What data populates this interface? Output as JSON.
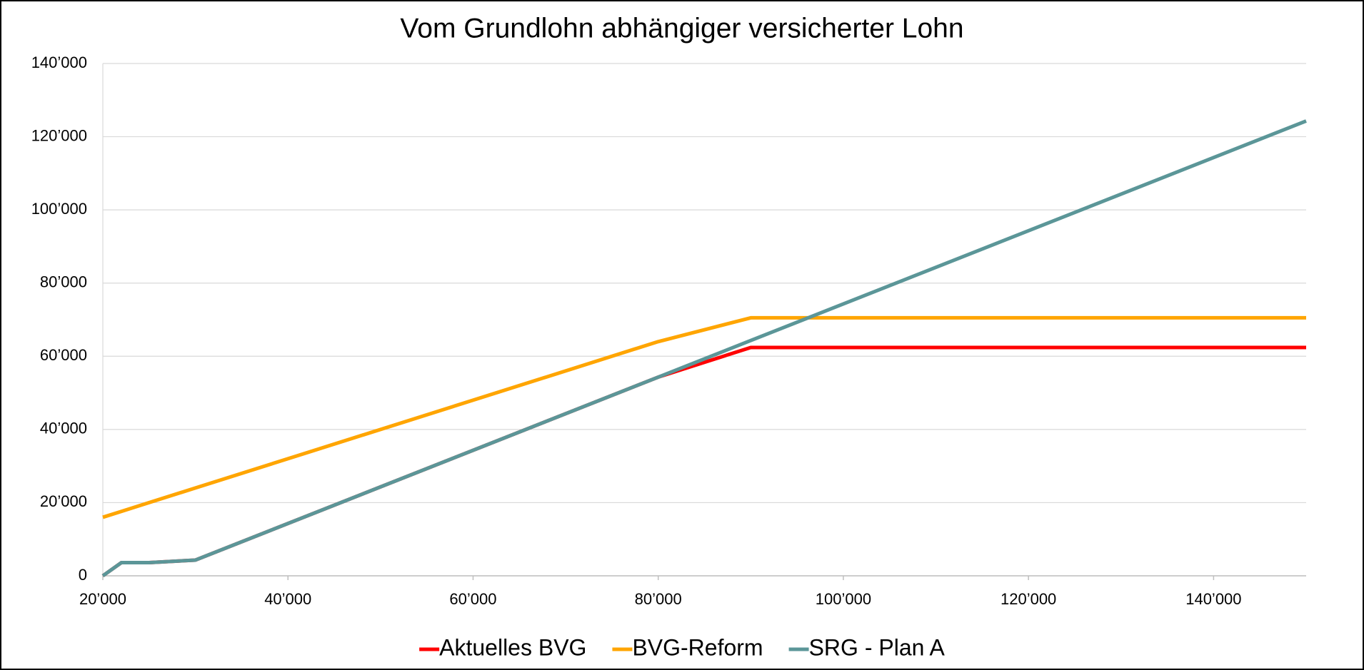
{
  "chart_data": {
    "type": "line",
    "title": "Vom Grundlohn abhängiger versicherter Lohn",
    "x": [
      20000,
      22000,
      25000,
      30000,
      80000,
      90000,
      150000
    ],
    "series": [
      {
        "name": "Aktuelles BVG",
        "color": "#ff0000",
        "values": [
          0,
          3600,
          3600,
          4300,
          54300,
          62400,
          62400
        ]
      },
      {
        "name": "BVG-Reform",
        "color": "#ffa500",
        "values": [
          16000,
          17600,
          20000,
          24000,
          64000,
          70500,
          70500
        ]
      },
      {
        "name": "SRG - Plan A",
        "color": "#5b9698",
        "values": [
          0,
          3600,
          3600,
          4300,
          54300,
          64300,
          124300
        ]
      }
    ],
    "xlim": [
      20000,
      150000
    ],
    "xticks": [
      {
        "value": 20000,
        "label": "20’000"
      },
      {
        "value": 40000,
        "label": "40’000"
      },
      {
        "value": 60000,
        "label": "60’000"
      },
      {
        "value": 80000,
        "label": "80’000"
      },
      {
        "value": 100000,
        "label": "100’000"
      },
      {
        "value": 120000,
        "label": "120’000"
      },
      {
        "value": 140000,
        "label": "140’000"
      }
    ],
    "ylim": [
      0,
      140000
    ],
    "yticks": [
      0,
      {
        "value": 20000,
        "label": "20’000"
      },
      {
        "value": 40000,
        "label": "40’000"
      },
      {
        "value": 60000,
        "label": "60’000"
      },
      {
        "value": 80000,
        "label": "80’000"
      },
      {
        "value": 100000,
        "label": "100’000"
      },
      {
        "value": 120000,
        "label": "120’000"
      },
      {
        "value": 140000,
        "label": "140’000"
      }
    ],
    "grid": true,
    "legend": "bottom"
  }
}
